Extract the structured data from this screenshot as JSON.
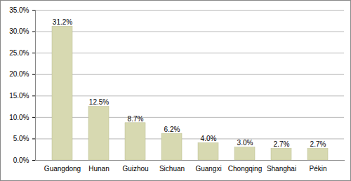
{
  "chart_data": {
    "type": "bar",
    "categories": [
      "Guangdong",
      "Hunan",
      "Guizhou",
      "Sichuan",
      "Guangxi",
      "Chongqing",
      "Shanghai",
      "Pékin"
    ],
    "values": [
      31.2,
      12.5,
      8.7,
      6.2,
      4.0,
      3.0,
      2.7,
      2.7
    ],
    "value_labels": [
      "31.2%",
      "12.5%",
      "8.7%",
      "6.2%",
      "4.0%",
      "3.0%",
      "2.7%",
      "2.7%"
    ],
    "color": "#d7d9b1",
    "ylim": [
      0,
      35
    ],
    "yticks": [
      {
        "value": 0,
        "label": "0.0%"
      },
      {
        "value": 5,
        "label": "5.0%"
      },
      {
        "value": 10,
        "label": "10.0%"
      },
      {
        "value": 15,
        "label": "15.0%"
      },
      {
        "value": 20,
        "label": "20.0%"
      },
      {
        "value": 25,
        "label": "25.0%"
      },
      {
        "value": 30,
        "label": "30.0%"
      },
      {
        "value": 35,
        "label": "35.0%"
      }
    ],
    "grid": true,
    "data_labels": true
  }
}
